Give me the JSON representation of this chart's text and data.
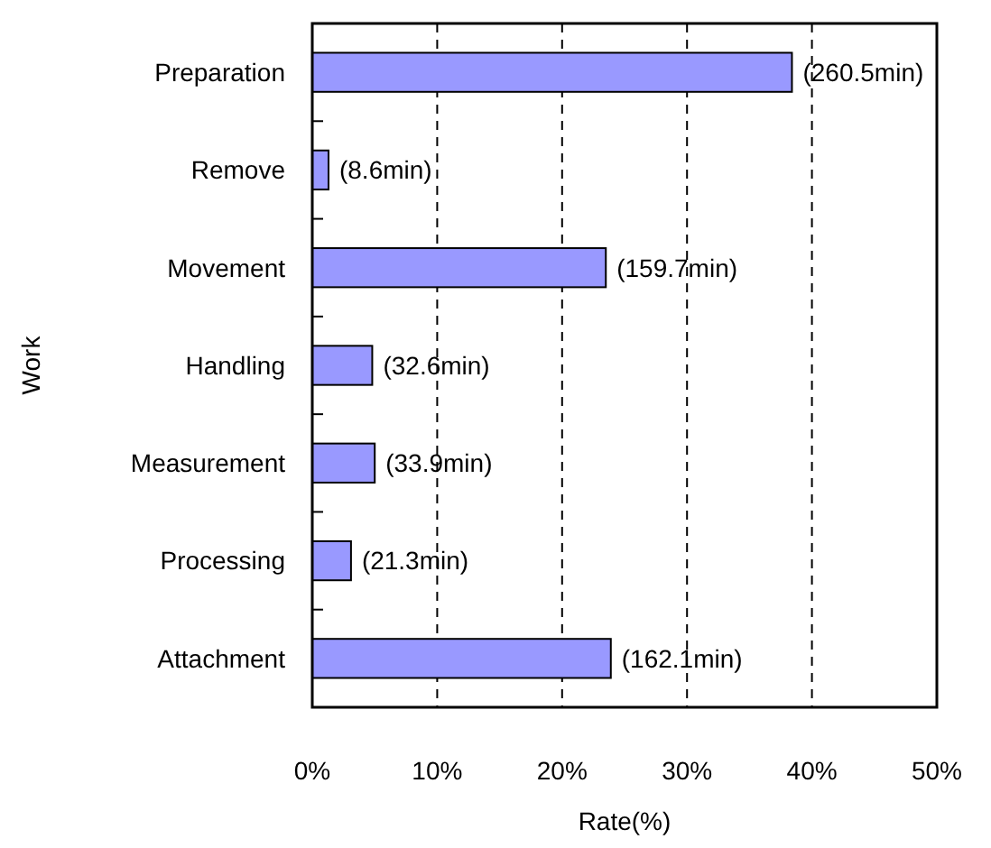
{
  "chart_data": {
    "type": "bar",
    "orientation": "horizontal",
    "xlabel": "Rate(%)",
    "ylabel": "Work",
    "categories": [
      "Preparation",
      "Remove",
      "Movement",
      "Handling",
      "Measurement",
      "Processing",
      "Attachment"
    ],
    "values": [
      38.4,
      1.3,
      23.5,
      4.8,
      5.0,
      3.1,
      23.9
    ],
    "annotations": [
      {
        "text": "(260.5min)",
        "x": 38.4,
        "y": "Preparation"
      },
      {
        "text": "(8.6min)",
        "x": 1.3,
        "y": "Remove"
      },
      {
        "text": "(159.7min)",
        "x": 23.5,
        "y": "Movement"
      },
      {
        "text": "(32.6min)",
        "x": 4.8,
        "y": "Handling"
      },
      {
        "text": "(33.9min)",
        "x": 5.0,
        "y": "Measurement"
      },
      {
        "text": "(21.3min)",
        "x": 3.1,
        "y": "Processing"
      },
      {
        "text": "(162.1min)",
        "x": 23.9,
        "y": "Attachment"
      }
    ],
    "color": "#9999ff",
    "xlim": [
      0,
      50
    ],
    "xticks": [
      {
        "value": 0,
        "label": "0%"
      },
      {
        "value": 10,
        "label": "10%"
      },
      {
        "value": 20,
        "label": "20%"
      },
      {
        "value": 30,
        "label": "30%"
      },
      {
        "value": 40,
        "label": "40%"
      },
      {
        "value": 50,
        "label": "50%"
      }
    ],
    "grid": "x",
    "line_style": "dashed"
  }
}
